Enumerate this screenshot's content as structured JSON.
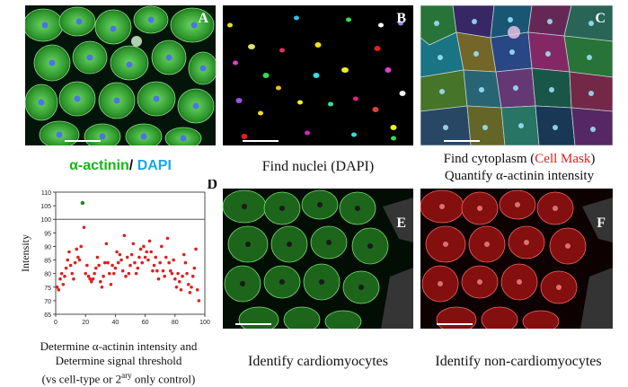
{
  "panels": {
    "A": {
      "letter": "A"
    },
    "B": {
      "letter": "B"
    },
    "C": {
      "letter": "C"
    },
    "D": {
      "letter": "D"
    },
    "E": {
      "letter": "E"
    },
    "F": {
      "letter": "F"
    }
  },
  "captions": {
    "A": {
      "alpha": "α-actinin",
      "sep": "/ ",
      "dapi": "DAPI",
      "alpha_color": "#14b814",
      "dapi_color": "#1aa7e6"
    },
    "B": "Find nuclei (DAPI)",
    "C": {
      "line1_pre": "Find cytoplasm (",
      "line1_red": "Cell Mask",
      "line1_post": ")",
      "line2": "Quantify α-actinin intensity",
      "red_color": "#e21b1b"
    },
    "D": {
      "line1": "Determine α-actinin intensity and",
      "line2": "Determine signal threshold",
      "line3_pre": "(vs cell-type or 2",
      "line3_sup": "ary",
      "line3_post": " only control)"
    },
    "E": "Identify cardiomyocytes",
    "F": "Identify non-cardiomyocytes"
  },
  "chart_data": {
    "type": "scatter",
    "ylabel": "Intensity",
    "xlim": [
      0,
      100
    ],
    "ylim": [
      65,
      110
    ],
    "xticks": [
      0,
      20,
      40,
      60,
      80,
      100
    ],
    "yticks": [
      65,
      70,
      75,
      80,
      85,
      90,
      95,
      100,
      105,
      110
    ],
    "threshold": 100,
    "outlier": {
      "x": 18,
      "y": 106,
      "color": "#1a8a1a"
    },
    "point_color": "#e02020",
    "points": [
      [
        1,
        75
      ],
      [
        2,
        74
      ],
      [
        3,
        78
      ],
      [
        4,
        80
      ],
      [
        5,
        76
      ],
      [
        6,
        79
      ],
      [
        7,
        82
      ],
      [
        8,
        85
      ],
      [
        9,
        88
      ],
      [
        10,
        83
      ],
      [
        11,
        80
      ],
      [
        12,
        78
      ],
      [
        13,
        84
      ],
      [
        14,
        89
      ],
      [
        15,
        86
      ],
      [
        16,
        85
      ],
      [
        17,
        90
      ],
      [
        19,
        97
      ],
      [
        20,
        80
      ],
      [
        21,
        83
      ],
      [
        22,
        79
      ],
      [
        23,
        78
      ],
      [
        24,
        77
      ],
      [
        25,
        78
      ],
      [
        26,
        80
      ],
      [
        27,
        82
      ],
      [
        28,
        86
      ],
      [
        29,
        83
      ],
      [
        30,
        77
      ],
      [
        31,
        75
      ],
      [
        32,
        79
      ],
      [
        33,
        84
      ],
      [
        34,
        91
      ],
      [
        35,
        84
      ],
      [
        36,
        80
      ],
      [
        37,
        76
      ],
      [
        38,
        83
      ],
      [
        39,
        80
      ],
      [
        40,
        82
      ],
      [
        41,
        88
      ],
      [
        42,
        84
      ],
      [
        43,
        87
      ],
      [
        44,
        85
      ],
      [
        45,
        81
      ],
      [
        46,
        94
      ],
      [
        47,
        79
      ],
      [
        48,
        86
      ],
      [
        49,
        80
      ],
      [
        50,
        83
      ],
      [
        51,
        87
      ],
      [
        52,
        91
      ],
      [
        53,
        84
      ],
      [
        54,
        80
      ],
      [
        55,
        82
      ],
      [
        56,
        86
      ],
      [
        57,
        89
      ],
      [
        58,
        84
      ],
      [
        59,
        90
      ],
      [
        60,
        86
      ],
      [
        61,
        88
      ],
      [
        62,
        85
      ],
      [
        63,
        92
      ],
      [
        64,
        88
      ],
      [
        65,
        81
      ],
      [
        66,
        83
      ],
      [
        67,
        86
      ],
      [
        68,
        81
      ],
      [
        69,
        78
      ],
      [
        70,
        84
      ],
      [
        71,
        90
      ],
      [
        72,
        81
      ],
      [
        73,
        79
      ],
      [
        74,
        86
      ],
      [
        75,
        93
      ],
      [
        76,
        84
      ],
      [
        77,
        81
      ],
      [
        78,
        80
      ],
      [
        79,
        85
      ],
      [
        80,
        78
      ],
      [
        81,
        75
      ],
      [
        82,
        80
      ],
      [
        83,
        77
      ],
      [
        84,
        74
      ],
      [
        85,
        79
      ],
      [
        86,
        87
      ],
      [
        87,
        84
      ],
      [
        88,
        80
      ],
      [
        89,
        76
      ],
      [
        90,
        73
      ],
      [
        91,
        75
      ],
      [
        92,
        79
      ],
      [
        93,
        82
      ],
      [
        94,
        89
      ],
      [
        95,
        74
      ],
      [
        96,
        70
      ]
    ]
  }
}
